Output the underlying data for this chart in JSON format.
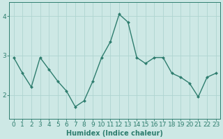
{
  "x": [
    0,
    1,
    2,
    3,
    4,
    5,
    6,
    7,
    8,
    9,
    10,
    11,
    12,
    13,
    14,
    15,
    16,
    17,
    18,
    19,
    20,
    21,
    22,
    23
  ],
  "y": [
    2.95,
    2.55,
    2.2,
    2.95,
    2.65,
    2.35,
    2.1,
    1.7,
    1.85,
    2.35,
    2.95,
    3.35,
    4.05,
    3.85,
    2.95,
    2.8,
    2.95,
    2.95,
    2.55,
    2.45,
    2.3,
    1.95,
    2.45,
    2.55
  ],
  "line_color": "#2e7d6e",
  "marker_color": "#2e7d6e",
  "bg_color": "#cde8e5",
  "grid_color": "#afd4d0",
  "xlabel": "Humidex (Indice chaleur)",
  "xlim": [
    -0.5,
    23.5
  ],
  "ylim": [
    1.4,
    4.35
  ],
  "yticks": [
    2,
    3,
    4
  ],
  "xticks": [
    0,
    1,
    2,
    3,
    4,
    5,
    6,
    7,
    8,
    9,
    10,
    11,
    12,
    13,
    14,
    15,
    16,
    17,
    18,
    19,
    20,
    21,
    22,
    23
  ],
  "figsize": [
    3.2,
    2.0
  ],
  "dpi": 100,
  "xlabel_fontsize": 7,
  "tick_fontsize": 6.5,
  "linewidth": 1.0,
  "markersize": 2.0
}
